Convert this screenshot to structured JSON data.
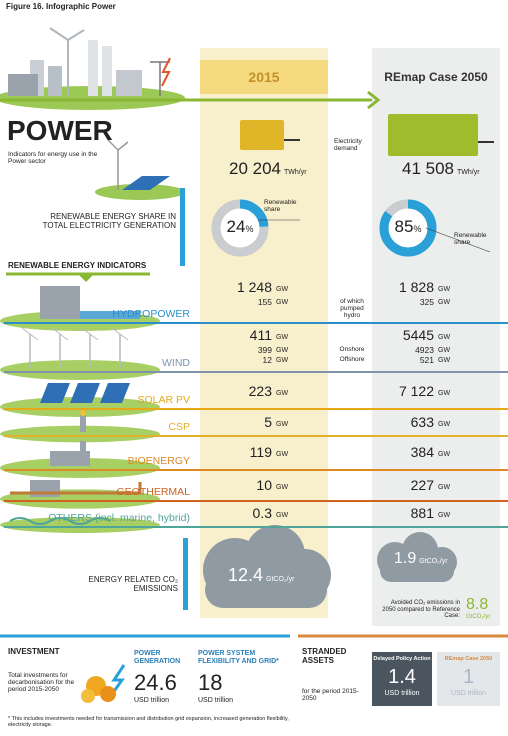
{
  "figure_title": "Figure 16. Infographic Power",
  "columns": [
    "2015",
    "REmap Case 2050"
  ],
  "power": {
    "title": "POWER",
    "subtitle": "Indicators for energy use in the Power sector"
  },
  "electricity_demand": {
    "label": "Electricity demand",
    "values": [
      "20 204",
      "41 508"
    ],
    "unit": "TWh/yr"
  },
  "renewable_share": {
    "label": "RENEWABLE ENERGY SHARE IN TOTAL ELECTRICITY GENERATION",
    "values": [
      24,
      85
    ],
    "unit": "%",
    "share_label": "Renewable share"
  },
  "indicators": {
    "title": "RENEWABLE ENERGY INDICATORS",
    "unit": "GW",
    "rows": [
      {
        "name": "HYDROPOWER",
        "color": "#2b8fc9",
        "values": [
          "1 248",
          "1 828"
        ],
        "sub": [
          {
            "label": "of which pumped hydro",
            "values": [
              "155",
              "325"
            ]
          }
        ]
      },
      {
        "name": "WIND",
        "color": "#7f93ad",
        "values": [
          "411",
          "5445"
        ],
        "sub": [
          {
            "label": "Onshore",
            "values": [
              "399",
              "4923"
            ]
          },
          {
            "label": "Offshore",
            "values": [
              "12",
              "521"
            ]
          }
        ]
      },
      {
        "name": "SOLAR PV",
        "color": "#e6a817",
        "values": [
          "223",
          "7 122"
        ]
      },
      {
        "name": "CSP",
        "color": "#e2b12c",
        "values": [
          "5",
          "633"
        ]
      },
      {
        "name": "BIOENERGY",
        "color": "#dc8a22",
        "values": [
          "119",
          "384"
        ]
      },
      {
        "name": "GEOTHERMAL",
        "color": "#d0621d",
        "values": [
          "10",
          "227"
        ]
      },
      {
        "name": "OTHERS (incl. marine, hybrid)",
        "color": "#4fa59a",
        "values": [
          "0.3",
          "881"
        ]
      }
    ]
  },
  "emissions": {
    "label": "ENERGY RELATED CO₂ EMISSIONS",
    "values": [
      "12.4",
      "1.9"
    ],
    "unit": "GtCO₂/yr",
    "avoided_label": "Avoided CO₂ emissions in 2050 compared to Reference Case:",
    "avoided_value": "8.8"
  },
  "investment": {
    "title": "INVESTMENT",
    "description": "Total investments for decarbonisation for the period 2015-2050",
    "items": [
      {
        "label": "POWER GENERATION",
        "value": "24.6",
        "unit": "USD trillion"
      },
      {
        "label": "POWER SYSTEM FLEXIBILITY AND GRID*",
        "value": "18",
        "unit": "USD trillion"
      }
    ],
    "footnote": "* This includes investments needed for transmission and distribution grid expansion, increased generation flexibility, electricity storage."
  },
  "stranded_assets": {
    "title": "STRANDED ASSETS",
    "period": "for the period 2015-2050",
    "items": [
      {
        "label": "Delayed Policy Action",
        "value": "1.4",
        "unit": "USD trillion"
      },
      {
        "label": "REmap Case 2050",
        "value": "1",
        "unit": "USD trillion"
      }
    ]
  }
}
